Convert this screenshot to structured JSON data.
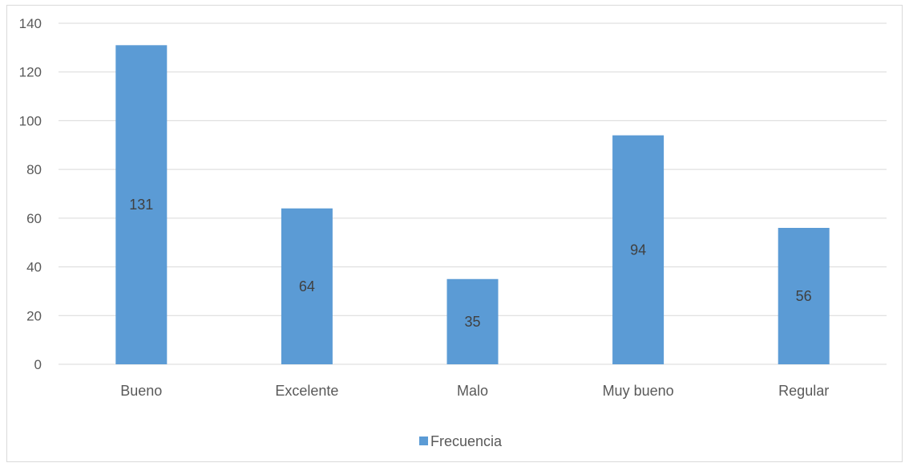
{
  "chart_data": {
    "type": "bar",
    "categories": [
      "Bueno",
      "Excelente",
      "Malo",
      "Muy bueno",
      "Regular"
    ],
    "series": [
      {
        "name": "Frecuencia",
        "values": [
          131,
          64,
          35,
          94,
          56
        ],
        "color": "#5b9bd5"
      }
    ],
    "ylim": [
      0,
      140
    ],
    "yticks": [
      0,
      20,
      40,
      60,
      80,
      100,
      120,
      140
    ],
    "grid": true,
    "legend_position": "bottom",
    "data_labels": true
  }
}
